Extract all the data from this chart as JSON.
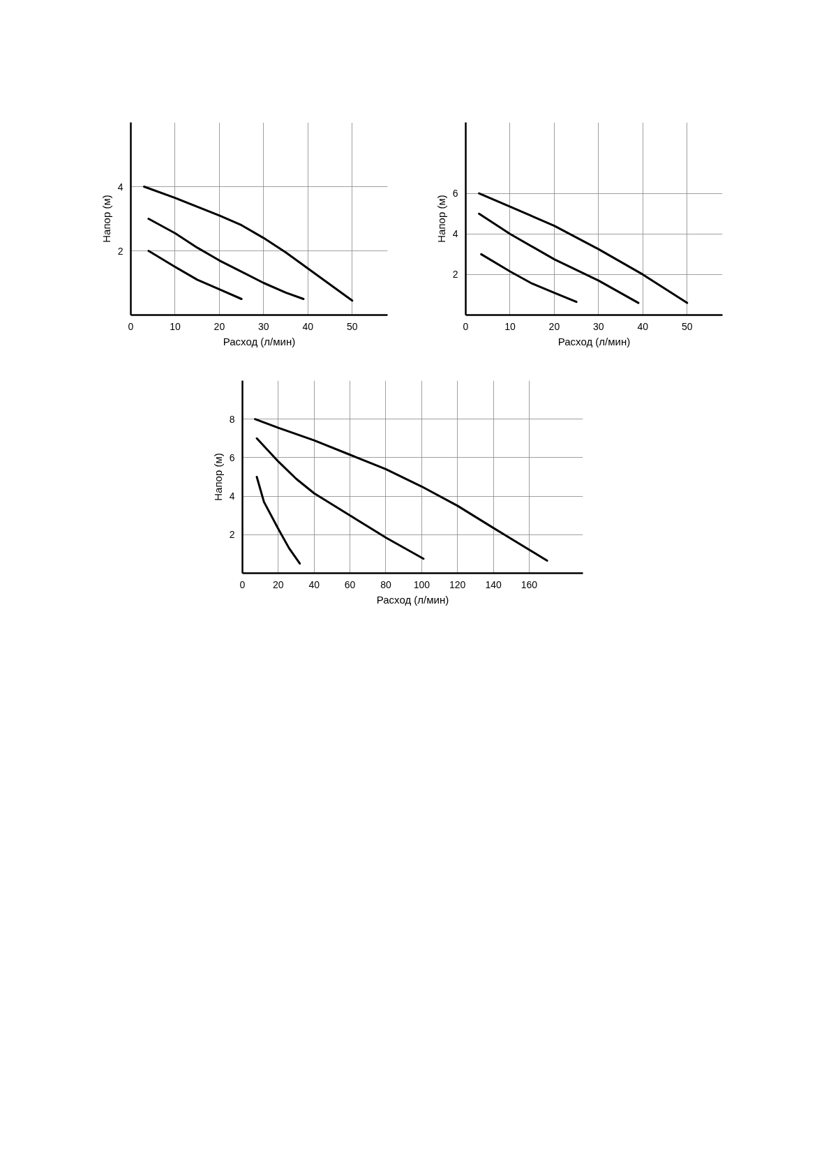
{
  "chart_data": [
    {
      "type": "line",
      "xlabel": "Расход (л/мин)",
      "ylabel": "Напор (м)",
      "xlim": [
        0,
        58
      ],
      "ylim": [
        0,
        6
      ],
      "xticks": [
        0,
        10,
        20,
        30,
        40,
        50
      ],
      "yticks": [
        2,
        4
      ],
      "grid": true,
      "line_style": "solid",
      "series": [
        {
          "color": "#000000",
          "x": [
            3,
            10,
            20,
            25,
            30,
            35,
            40,
            45,
            50
          ],
          "values": [
            4,
            3.65,
            3.1,
            2.8,
            2.4,
            1.95,
            1.45,
            0.95,
            0.45
          ]
        },
        {
          "color": "#000000",
          "x": [
            4,
            10,
            15,
            20,
            25,
            30,
            35,
            39
          ],
          "values": [
            3,
            2.55,
            2.1,
            1.7,
            1.35,
            1.0,
            0.7,
            0.5
          ]
        },
        {
          "color": "#000000",
          "x": [
            4,
            10,
            15,
            20,
            25
          ],
          "values": [
            2,
            1.5,
            1.1,
            0.8,
            0.5
          ]
        }
      ]
    },
    {
      "type": "line",
      "xlabel": "Расход (л/мин)",
      "ylabel": "Напор (м)",
      "xlim": [
        0,
        58
      ],
      "ylim": [
        0,
        9.5
      ],
      "xticks": [
        0,
        10,
        20,
        30,
        40,
        50
      ],
      "yticks": [
        2,
        4,
        6
      ],
      "grid": true,
      "line_style": "solid",
      "series": [
        {
          "color": "#000000",
          "x": [
            3,
            10,
            20,
            30,
            40,
            50
          ],
          "values": [
            6,
            5.35,
            4.4,
            3.25,
            2,
            0.6
          ]
        },
        {
          "color": "#000000",
          "x": [
            3,
            10,
            20,
            30,
            39
          ],
          "values": [
            5,
            4.0,
            2.75,
            1.7,
            0.6
          ]
        },
        {
          "color": "#000000",
          "x": [
            3.5,
            10,
            15,
            20,
            25
          ],
          "values": [
            3,
            2.15,
            1.55,
            1.1,
            0.65
          ]
        }
      ]
    },
    {
      "type": "line",
      "xlabel": "Расход (л/мин)",
      "ylabel": "Напор (м)",
      "xlim": [
        0,
        190
      ],
      "ylim": [
        0,
        10
      ],
      "xticks": [
        0,
        20,
        40,
        60,
        80,
        100,
        120,
        140,
        160
      ],
      "yticks": [
        2,
        4,
        6,
        8
      ],
      "grid": true,
      "line_style": "solid",
      "series": [
        {
          "color": "#000000",
          "x": [
            7,
            20,
            40,
            60,
            80,
            100,
            120,
            140,
            170
          ],
          "values": [
            8,
            7.55,
            6.9,
            6.15,
            5.4,
            4.5,
            3.5,
            2.35,
            0.65
          ]
        },
        {
          "color": "#000000",
          "x": [
            8,
            20,
            30,
            40,
            60,
            80,
            101
          ],
          "values": [
            7,
            5.8,
            4.9,
            4.15,
            3.0,
            1.85,
            0.75
          ]
        },
        {
          "color": "#000000",
          "x": [
            8,
            12,
            20,
            26,
            32
          ],
          "values": [
            5,
            3.7,
            2.3,
            1.3,
            0.5
          ]
        }
      ]
    }
  ]
}
